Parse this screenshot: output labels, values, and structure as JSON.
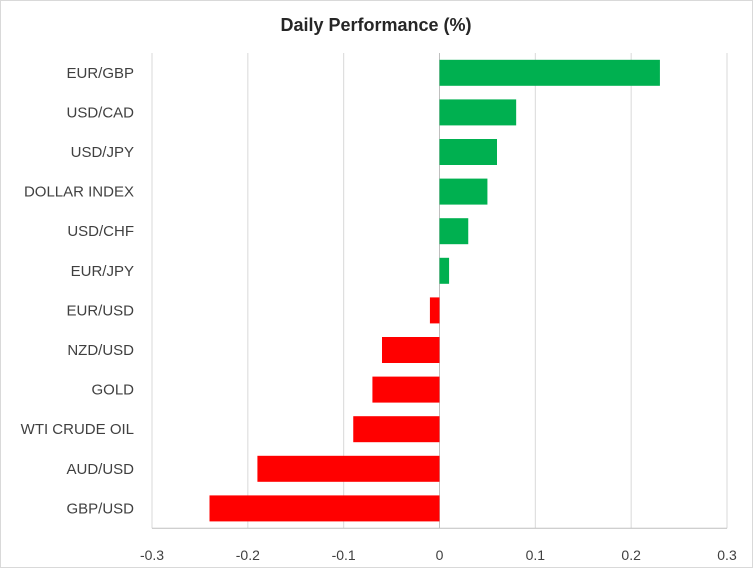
{
  "chart_data": {
    "type": "bar",
    "orientation": "horizontal",
    "title": "Daily Performance  (%)",
    "xlabel": "",
    "ylabel": "",
    "xlim": [
      -0.3,
      0.3
    ],
    "xticks": [
      "-0.3",
      "-0.2",
      "-0.1",
      "0",
      "0.1",
      "0.2",
      "0.3"
    ],
    "xtick_values": [
      -0.3,
      -0.2,
      -0.1,
      0,
      0.1,
      0.2,
      0.3
    ],
    "grid": "vertical",
    "legend": "none",
    "categories": [
      "EUR/GBP",
      "USD/CAD",
      "USD/JPY",
      "DOLLAR INDEX",
      "USD/CHF",
      "EUR/JPY",
      "EUR/USD",
      "NZD/USD",
      "GOLD",
      "WTI CRUDE OIL",
      "AUD/USD",
      "GBP/USD"
    ],
    "values": [
      0.23,
      0.08,
      0.06,
      0.05,
      0.03,
      0.01,
      -0.01,
      -0.06,
      -0.07,
      -0.09,
      -0.19,
      -0.24
    ],
    "colors": {
      "positive": "#00b050",
      "negative": "#ff0000"
    }
  }
}
